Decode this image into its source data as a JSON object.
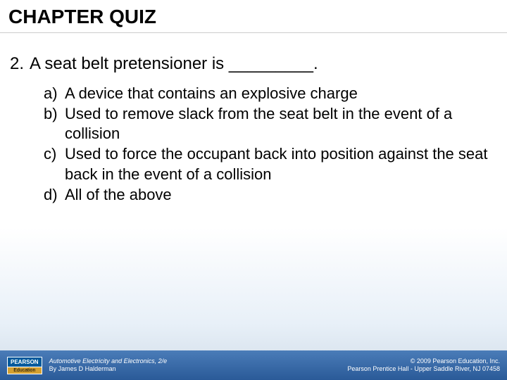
{
  "title": "CHAPTER QUIZ",
  "question": {
    "number": "2.",
    "text": "A seat belt pretensioner is _________."
  },
  "options": [
    {
      "letter": "a)",
      "text": "A device that contains an explosive charge"
    },
    {
      "letter": "b)",
      "text": "Used to remove slack from the seat belt in the event of a collision"
    },
    {
      "letter": "c)",
      "text": "Used to force the occupant back into position against the seat back in the event of a collision"
    },
    {
      "letter": "d)",
      "text": "All of the above"
    }
  ],
  "logo": {
    "top": "PEARSON",
    "bottom": "Education"
  },
  "footer": {
    "book": "Automotive Electricity and Electronics, 2/e",
    "author": "By James D Halderman",
    "copyright": "© 2009 Pearson Education, Inc.",
    "publisher": "Pearson Prentice Hall - Upper Saddle River, NJ 07458"
  }
}
